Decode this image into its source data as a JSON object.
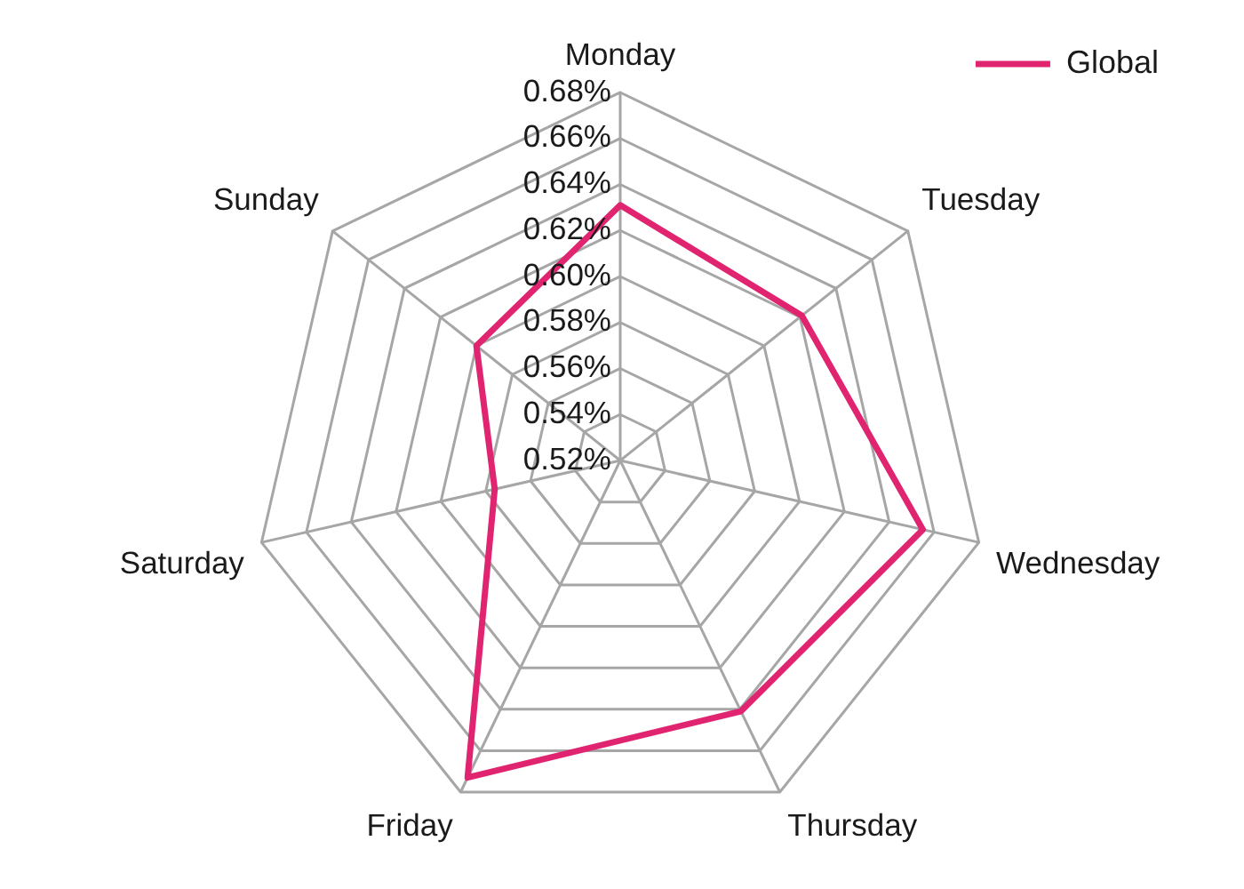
{
  "chart_data": {
    "type": "radar",
    "categories": [
      "Monday",
      "Tuesday",
      "Wednesday",
      "Thursday",
      "Friday",
      "Saturday",
      "Sunday"
    ],
    "series": [
      {
        "name": "Global",
        "color": "#e0246f",
        "values": [
          0.631,
          0.621,
          0.655,
          0.641,
          0.673,
          0.576,
          0.6
        ]
      }
    ],
    "ylim": [
      0.52,
      0.68
    ],
    "yticks": [
      {
        "value": 0.52,
        "label": "0.52%"
      },
      {
        "value": 0.54,
        "label": "0.54%"
      },
      {
        "value": 0.56,
        "label": "0.56%"
      },
      {
        "value": 0.58,
        "label": "0.58%"
      },
      {
        "value": 0.6,
        "label": "0.60%"
      },
      {
        "value": 0.62,
        "label": "0.62%"
      },
      {
        "value": 0.64,
        "label": "0.64%"
      },
      {
        "value": 0.66,
        "label": "0.66%"
      },
      {
        "value": 0.68,
        "label": "0.68%"
      }
    ],
    "grid": true,
    "legend": "top right",
    "marker": "none",
    "line_style": "solid"
  }
}
